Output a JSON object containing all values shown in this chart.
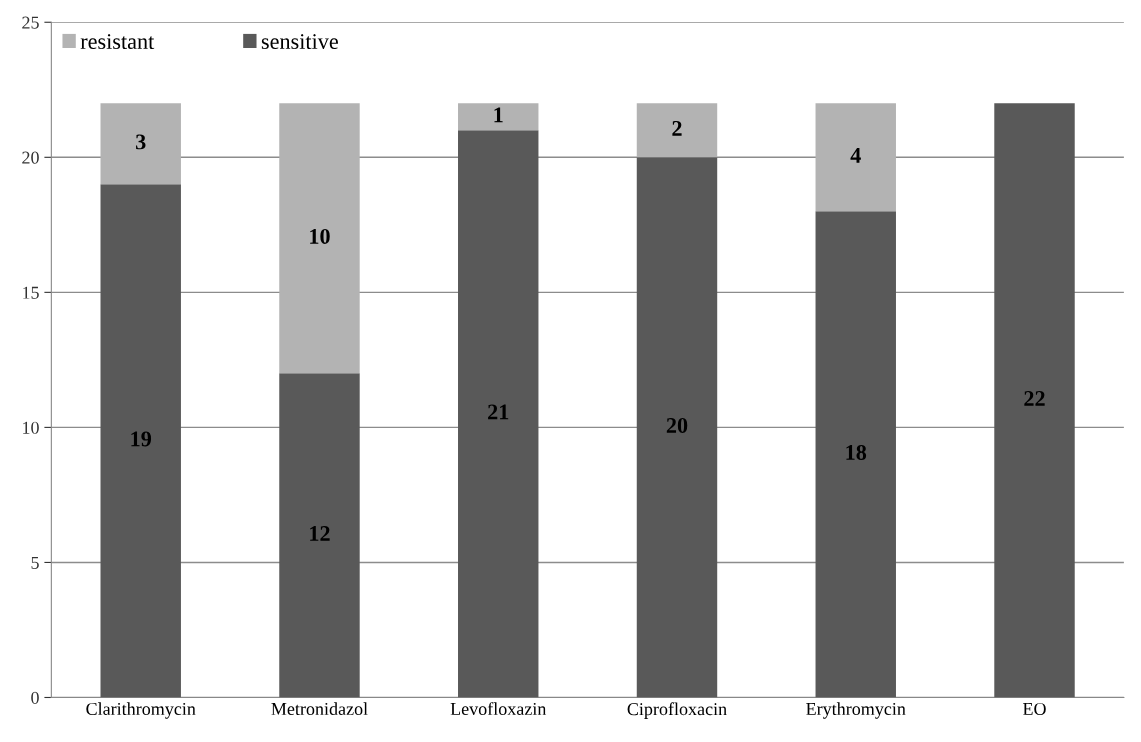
{
  "chart_data": {
    "type": "bar",
    "stacked": true,
    "categories": [
      "Clarithromycin",
      "Metronidazol",
      "Levofloxazin",
      "Ciprofloxacin",
      "Erythromycin",
      "EO"
    ],
    "series": [
      {
        "name": "sensitive",
        "color": "#595959",
        "values": [
          19,
          12,
          21,
          20,
          18,
          22
        ],
        "value_labels": [
          "19",
          "12",
          "21",
          "20",
          "18",
          "22"
        ]
      },
      {
        "name": "resistant",
        "color": "#b3b3b3",
        "values": [
          3,
          10,
          1,
          2,
          4,
          0
        ],
        "value_labels": [
          "3",
          "10",
          "1",
          "2",
          "4",
          null
        ]
      }
    ],
    "ylim": [
      0,
      25
    ],
    "yticks": [
      0,
      5,
      10,
      15,
      20,
      25
    ],
    "grid": "y",
    "legend": "top left"
  }
}
